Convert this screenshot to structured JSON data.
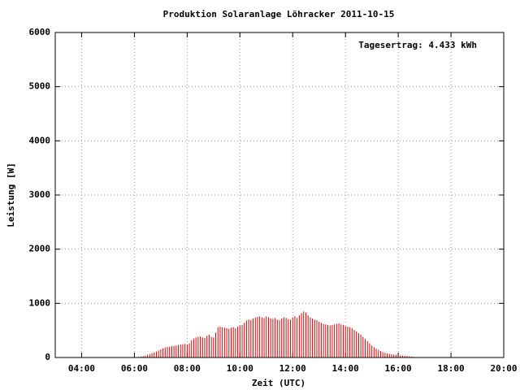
{
  "chart_data": {
    "type": "impulse",
    "title": "Produktion Solaranlage Löhracker 2011-10-15",
    "annotation": "Tagesertrag: 4.433 kWh",
    "xlabel": "Zeit (UTC)",
    "ylabel": "Leistung [W]",
    "xlim": [
      180,
      1200
    ],
    "ylim": [
      0,
      6000
    ],
    "xticks": [
      {
        "value": 240,
        "label": "04:00"
      },
      {
        "value": 360,
        "label": "06:00"
      },
      {
        "value": 480,
        "label": "08:00"
      },
      {
        "value": 600,
        "label": "10:00"
      },
      {
        "value": 720,
        "label": "12:00"
      },
      {
        "value": 840,
        "label": "14:00"
      },
      {
        "value": 960,
        "label": "16:00"
      },
      {
        "value": 1080,
        "label": "18:00"
      },
      {
        "value": 1200,
        "label": "20:00"
      }
    ],
    "yticks": [
      0,
      1000,
      2000,
      3000,
      4000,
      5000,
      6000
    ],
    "grid": true,
    "color": "#e00000",
    "x": [
      365,
      370,
      375,
      380,
      385,
      390,
      395,
      400,
      405,
      410,
      415,
      420,
      425,
      430,
      435,
      440,
      445,
      450,
      455,
      460,
      465,
      470,
      475,
      480,
      485,
      490,
      495,
      500,
      505,
      510,
      515,
      520,
      525,
      530,
      535,
      540,
      545,
      550,
      555,
      560,
      565,
      570,
      575,
      580,
      585,
      590,
      595,
      600,
      605,
      610,
      615,
      620,
      625,
      630,
      635,
      640,
      645,
      650,
      655,
      660,
      665,
      670,
      675,
      680,
      685,
      690,
      695,
      700,
      705,
      710,
      715,
      720,
      725,
      730,
      735,
      740,
      745,
      750,
      755,
      760,
      765,
      770,
      775,
      780,
      785,
      790,
      795,
      800,
      805,
      810,
      815,
      820,
      825,
      830,
      835,
      840,
      845,
      850,
      855,
      860,
      865,
      870,
      875,
      880,
      885,
      890,
      895,
      900,
      905,
      910,
      915,
      920,
      925,
      930,
      935,
      940,
      945,
      950,
      955,
      960,
      965,
      970,
      975,
      980,
      985,
      990,
      995,
      1000,
      1005,
      1010
    ],
    "values": [
      8,
      12,
      18,
      25,
      35,
      50,
      65,
      80,
      95,
      110,
      130,
      150,
      170,
      185,
      195,
      200,
      210,
      215,
      220,
      230,
      240,
      245,
      250,
      240,
      260,
      320,
      350,
      370,
      380,
      390,
      370,
      360,
      400,
      420,
      380,
      370,
      460,
      560,
      570,
      560,
      550,
      540,
      530,
      550,
      560,
      540,
      570,
      590,
      600,
      640,
      680,
      700,
      690,
      720,
      740,
      750,
      760,
      740,
      730,
      760,
      740,
      720,
      710,
      730,
      700,
      690,
      720,
      740,
      730,
      710,
      700,
      740,
      760,
      730,
      780,
      820,
      850,
      830,
      780,
      740,
      720,
      700,
      690,
      660,
      640,
      620,
      610,
      600,
      590,
      600,
      610,
      620,
      630,
      610,
      600,
      580,
      570,
      560,
      540,
      510,
      480,
      450,
      420,
      380,
      340,
      300,
      260,
      220,
      190,
      160,
      140,
      120,
      100,
      85,
      75,
      65,
      60,
      55,
      50,
      45,
      40,
      35,
      30,
      25,
      20,
      15,
      12,
      8,
      5,
      3
    ]
  }
}
